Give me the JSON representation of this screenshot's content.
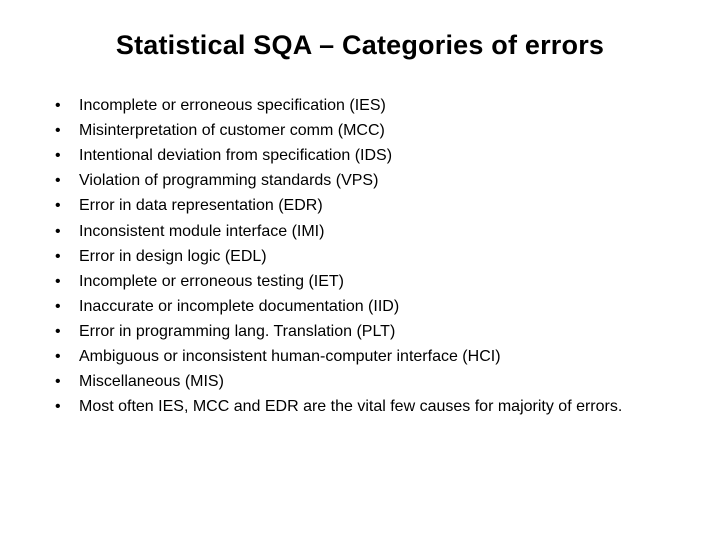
{
  "slide": {
    "title": "Statistical SQA – Categories of errors",
    "title_fontsize": 27,
    "title_font_weight": "bold",
    "title_color": "#000000",
    "body_fontsize": 16,
    "body_color": "#000000",
    "background_color": "#ffffff",
    "bullet_glyph": "•",
    "bullets": [
      "Incomplete or erroneous specification (IES)",
      "Misinterpretation of customer comm (MCC)",
      "Intentional deviation from specification (IDS)",
      "Violation of programming standards (VPS)",
      "Error in data representation (EDR)",
      "Inconsistent module interface (IMI)",
      "Error in design logic (EDL)",
      "Incomplete or erroneous testing (IET)",
      "Inaccurate or incomplete documentation (IID)",
      "Error in programming lang. Translation (PLT)",
      "Ambiguous or inconsistent human-computer interface (HCI)",
      "Miscellaneous (MIS)",
      "Most often IES, MCC and EDR are the vital few causes for majority of  errors."
    ]
  }
}
